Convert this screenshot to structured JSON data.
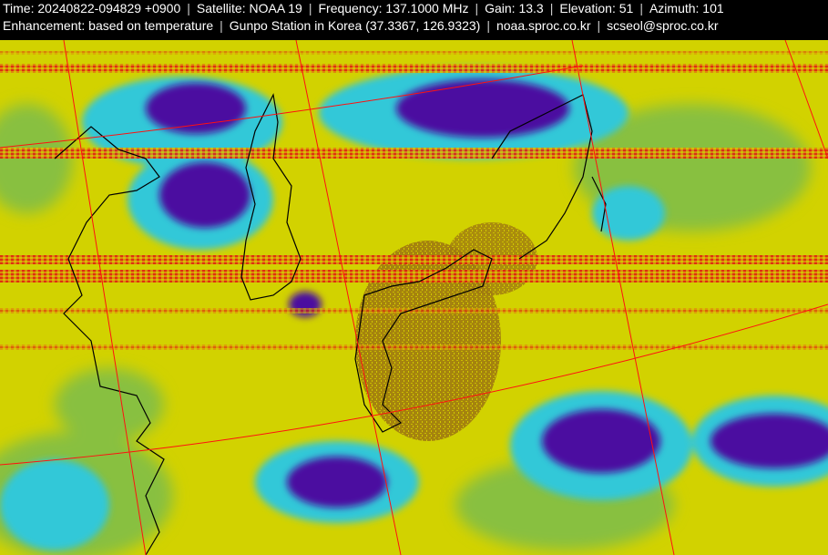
{
  "header": {
    "line1": [
      "Time: 20240822-094829 +0900",
      "Satellite: NOAA 19",
      "Frequency: 137.1000 MHz",
      "Gain: 13.3",
      "Elevation: 51",
      "Azimuth: 101"
    ],
    "line2": [
      "Enhancement: based on temperature",
      "Gunpo Station in Korea (37.3367, 126.9323)",
      "noaa.sproc.co.kr",
      "scseol@sproc.co.kr"
    ],
    "separator": "|"
  },
  "image": {
    "colors": {
      "background": "#d2d200",
      "cold_cloud": "#4b10a0",
      "cyan": "#30c8d8",
      "green": "#88c040",
      "warm_land": "#a07a10",
      "noise_red": "#e02010",
      "graticule": "#ff1010",
      "coastline": "#000000"
    }
  }
}
